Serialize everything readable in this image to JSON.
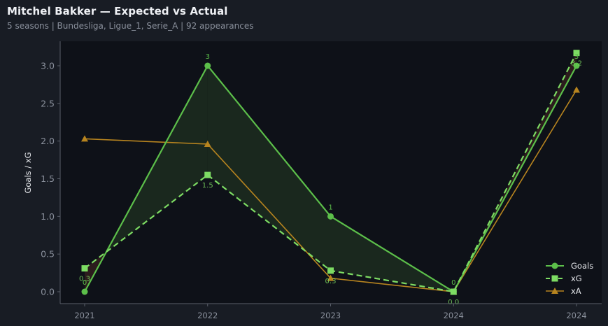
{
  "header": {
    "title": "Mitchel Bakker — Expected vs Actual",
    "subtitle": "5 seasons | Bundesliga, Ligue_1, Serie_A | 92 appearances"
  },
  "colors": {
    "background": "#181c24",
    "plot_background": "#0e1118",
    "goals": "#5cbf4a",
    "xg": "#7ddc63",
    "xa": "#b7841f",
    "fill_over": "#1b2a1f",
    "fill_under": "#2e1d1d",
    "axis": "#5a5f6a",
    "tick_text": "#8a909c"
  },
  "chart_data": {
    "type": "line",
    "title": "Mitchel Bakker — Expected vs Actual",
    "subtitle": "5 seasons | Bundesliga, Ligue_1, Serie_A | 92 appearances",
    "xlabel": "",
    "ylabel": "Goals / xG",
    "categories": [
      "2021",
      "2022",
      "2023",
      "2024",
      "2024"
    ],
    "ylim": [
      -0.12,
      3.35
    ],
    "yticks": [
      "0.0",
      "0.5",
      "1.0",
      "1.5",
      "2.0",
      "2.5",
      "3.0"
    ],
    "grid": false,
    "legend_position": "lower right",
    "series": [
      {
        "name": "Goals",
        "values": [
          0,
          3,
          1,
          0,
          3
        ],
        "labels": [
          "0",
          "3",
          "1",
          "0",
          "3"
        ],
        "style": "solid",
        "marker": "circle"
      },
      {
        "name": "xG",
        "values": [
          0.31,
          1.55,
          0.28,
          0.0,
          3.17
        ],
        "labels": [
          "0.3",
          "1.5",
          "0.3",
          "0.0",
          "3.2"
        ],
        "style": "dashed",
        "marker": "square"
      },
      {
        "name": "xA",
        "values": [
          2.03,
          1.96,
          0.18,
          0.0,
          2.68
        ],
        "style": "solid",
        "marker": "triangle"
      }
    ],
    "annotations": [
      "Shaded area between Goals and xG: green where Goals > xG, red where Goals < xG"
    ]
  },
  "legend": {
    "items": [
      {
        "label": "Goals"
      },
      {
        "label": "xG"
      },
      {
        "label": "xA"
      }
    ]
  }
}
